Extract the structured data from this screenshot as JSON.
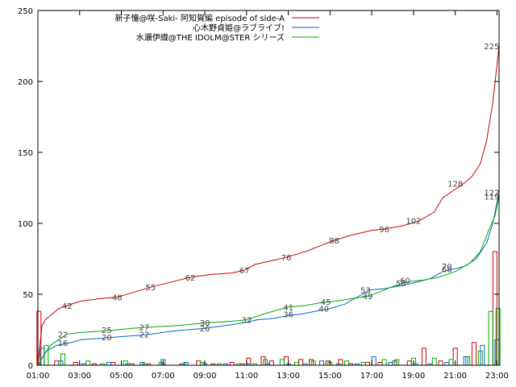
{
  "chart_data": {
    "type": "line",
    "title": "",
    "xlabel": "",
    "ylabel": "",
    "xlim": [
      1.0,
      23.1
    ],
    "ylim": [
      0,
      250
    ],
    "xticks": [
      "01:00",
      "03:00",
      "05:00",
      "07:00",
      "09:00",
      "11:00",
      "13:00",
      "15:00",
      "17:00",
      "19:00",
      "21:00",
      "23:00"
    ],
    "xtick_hours": [
      1,
      3,
      5,
      7,
      9,
      11,
      13,
      15,
      17,
      19,
      21,
      23
    ],
    "yticks": [
      0,
      50,
      100,
      150,
      200,
      250
    ],
    "grid": false,
    "legend_position": "top-right",
    "series": [
      {
        "name": "新子憧@咲-Saki- 阿知賀編 episode of side-A",
        "color": "#cc0000",
        "cumulative": [
          [
            1.0,
            0
          ],
          [
            1.1,
            15
          ],
          [
            1.2,
            28
          ],
          [
            1.35,
            32
          ],
          [
            1.6,
            35
          ],
          [
            2.0,
            40
          ],
          [
            2.4,
            42
          ],
          [
            3.0,
            45
          ],
          [
            4.0,
            47
          ],
          [
            4.8,
            48
          ],
          [
            5.5,
            51
          ],
          [
            6.4,
            55
          ],
          [
            7.5,
            59
          ],
          [
            8.3,
            62
          ],
          [
            9.3,
            64
          ],
          [
            10.3,
            65
          ],
          [
            10.9,
            67
          ],
          [
            11.4,
            71
          ],
          [
            12.3,
            74
          ],
          [
            12.9,
            76
          ],
          [
            13.8,
            80
          ],
          [
            14.5,
            84
          ],
          [
            15.2,
            88
          ],
          [
            16.1,
            92
          ],
          [
            17.0,
            95
          ],
          [
            17.6,
            96
          ],
          [
            18.4,
            98
          ],
          [
            18.9,
            100
          ],
          [
            19.3,
            102
          ],
          [
            20.0,
            108
          ],
          [
            20.4,
            118
          ],
          [
            20.9,
            123
          ],
          [
            21.4,
            128
          ],
          [
            21.8,
            133
          ],
          [
            22.2,
            142
          ],
          [
            22.5,
            158
          ],
          [
            22.8,
            185
          ],
          [
            23.1,
            225
          ]
        ],
        "labels": [
          [
            2.4,
            42,
            "42"
          ],
          [
            4.8,
            48,
            "48"
          ],
          [
            6.4,
            55,
            "55"
          ],
          [
            8.3,
            62,
            "62"
          ],
          [
            10.9,
            67,
            "67"
          ],
          [
            12.9,
            76,
            "76"
          ],
          [
            15.2,
            88,
            "88"
          ],
          [
            17.6,
            96,
            "96"
          ],
          [
            19.0,
            102,
            "102"
          ],
          [
            21.0,
            128,
            "128"
          ],
          [
            22.75,
            225,
            "225"
          ]
        ],
        "hourly": [
          [
            1.05,
            38
          ],
          [
            1.9,
            3
          ],
          [
            2.8,
            2
          ],
          [
            3.7,
            1
          ],
          [
            4.6,
            2
          ],
          [
            5.5,
            1
          ],
          [
            6.3,
            1
          ],
          [
            7.0,
            1
          ],
          [
            7.9,
            1
          ],
          [
            8.7,
            3
          ],
          [
            9.4,
            1
          ],
          [
            10.3,
            2
          ],
          [
            10.8,
            1
          ],
          [
            11.1,
            5
          ],
          [
            11.8,
            6
          ],
          [
            12.2,
            3
          ],
          [
            12.9,
            6
          ],
          [
            13.6,
            4
          ],
          [
            14.1,
            4
          ],
          [
            14.9,
            3
          ],
          [
            15.5,
            4
          ],
          [
            16.0,
            1
          ],
          [
            16.8,
            2
          ],
          [
            17.4,
            2
          ],
          [
            18.1,
            3
          ],
          [
            18.8,
            3
          ],
          [
            19.5,
            12
          ],
          [
            20.3,
            3
          ],
          [
            21.0,
            12
          ],
          [
            21.9,
            16
          ],
          [
            22.9,
            80
          ]
        ]
      },
      {
        "name": "心木野貞姫@ラブライブ!",
        "color": "#0066cc",
        "cumulative": [
          [
            1.0,
            0
          ],
          [
            1.4,
            10
          ],
          [
            1.9,
            14
          ],
          [
            2.6,
            16
          ],
          [
            3.1,
            18
          ],
          [
            4.0,
            19
          ],
          [
            4.9,
            20
          ],
          [
            5.8,
            21
          ],
          [
            6.5,
            22
          ],
          [
            7.4,
            24
          ],
          [
            8.2,
            25
          ],
          [
            9.0,
            26
          ],
          [
            10.0,
            28
          ],
          [
            10.9,
            30
          ],
          [
            11.5,
            32
          ],
          [
            12.3,
            33
          ],
          [
            13.0,
            35
          ],
          [
            13.6,
            36
          ],
          [
            14.3,
            38
          ],
          [
            15.0,
            40
          ],
          [
            15.7,
            43
          ],
          [
            16.3,
            48
          ],
          [
            16.9,
            53
          ],
          [
            17.6,
            54
          ],
          [
            18.4,
            56
          ],
          [
            19.0,
            58
          ],
          [
            19.8,
            61
          ],
          [
            20.4,
            66
          ],
          [
            21.0,
            68
          ],
          [
            21.5,
            70
          ],
          [
            22.0,
            75
          ],
          [
            22.5,
            86
          ],
          [
            22.8,
            100
          ],
          [
            23.1,
            122
          ]
        ],
        "labels": [
          [
            2.2,
            16,
            "16"
          ],
          [
            4.3,
            20,
            "20"
          ],
          [
            6.1,
            22,
            "22"
          ],
          [
            9.0,
            26,
            "26"
          ],
          [
            11.0,
            32,
            "32"
          ],
          [
            13.0,
            36,
            "36"
          ],
          [
            14.7,
            40,
            "40"
          ],
          [
            16.7,
            53,
            "53"
          ],
          [
            18.4,
            58,
            "58"
          ],
          [
            20.6,
            70,
            "70"
          ],
          [
            22.75,
            122,
            "122"
          ]
        ],
        "hourly": [
          [
            1.2,
            12
          ],
          [
            2.1,
            3
          ],
          [
            3.2,
            1
          ],
          [
            4.4,
            2
          ],
          [
            5.3,
            1
          ],
          [
            6.0,
            2
          ],
          [
            7.0,
            4
          ],
          [
            8.1,
            2
          ],
          [
            9.0,
            1
          ],
          [
            10.0,
            1
          ],
          [
            11.1,
            1
          ],
          [
            12.0,
            1
          ],
          [
            13.0,
            1
          ],
          [
            13.8,
            1
          ],
          [
            14.6,
            3
          ],
          [
            15.4,
            1
          ],
          [
            16.3,
            1
          ],
          [
            17.1,
            6
          ],
          [
            17.9,
            2
          ],
          [
            19.1,
            1
          ],
          [
            19.8,
            1
          ],
          [
            20.6,
            2
          ],
          [
            21.5,
            6
          ],
          [
            22.3,
            14
          ],
          [
            23.0,
            18
          ]
        ]
      },
      {
        "name": "水瀬伊織@THE IDOLM@STER シリーズ",
        "color": "#00aa00",
        "cumulative": [
          [
            1.0,
            0
          ],
          [
            1.2,
            5
          ],
          [
            1.6,
            14
          ],
          [
            2.0,
            18
          ],
          [
            2.4,
            22
          ],
          [
            3.0,
            23
          ],
          [
            4.0,
            24
          ],
          [
            4.8,
            25
          ],
          [
            5.5,
            26
          ],
          [
            6.5,
            27
          ],
          [
            7.7,
            28
          ],
          [
            8.4,
            29
          ],
          [
            9.2,
            30
          ],
          [
            10.3,
            31
          ],
          [
            11.0,
            32
          ],
          [
            11.8,
            36
          ],
          [
            12.5,
            39
          ],
          [
            13.0,
            41
          ],
          [
            13.8,
            42
          ],
          [
            14.5,
            44
          ],
          [
            15.2,
            45
          ],
          [
            16.1,
            47
          ],
          [
            16.9,
            49
          ],
          [
            17.6,
            53
          ],
          [
            18.1,
            56
          ],
          [
            18.8,
            59
          ],
          [
            19.5,
            60
          ],
          [
            20.2,
            62
          ],
          [
            21.0,
            66
          ],
          [
            21.7,
            72
          ],
          [
            22.2,
            80
          ],
          [
            22.6,
            95
          ],
          [
            22.9,
            105
          ],
          [
            23.1,
            119
          ]
        ],
        "labels": [
          [
            2.2,
            22,
            "22"
          ],
          [
            4.3,
            25,
            "25"
          ],
          [
            6.1,
            27,
            "27"
          ],
          [
            9.0,
            30,
            "30"
          ],
          [
            13.0,
            41,
            "41"
          ],
          [
            14.8,
            45,
            "45"
          ],
          [
            16.8,
            49,
            "49"
          ],
          [
            18.6,
            60,
            "60"
          ],
          [
            20.6,
            68,
            "68"
          ],
          [
            22.75,
            119,
            "119"
          ]
        ],
        "hourly": [
          [
            1.4,
            14
          ],
          [
            2.2,
            8
          ],
          [
            3.4,
            3
          ],
          [
            4.1,
            1
          ],
          [
            5.2,
            3
          ],
          [
            6.1,
            1
          ],
          [
            6.9,
            2
          ],
          [
            8.0,
            1
          ],
          [
            8.9,
            2
          ],
          [
            9.7,
            1
          ],
          [
            10.6,
            1
          ],
          [
            11.4,
            1
          ],
          [
            11.9,
            4
          ],
          [
            12.7,
            4
          ],
          [
            13.4,
            2
          ],
          [
            14.2,
            3
          ],
          [
            15.0,
            2
          ],
          [
            15.8,
            3
          ],
          [
            16.6,
            2
          ],
          [
            17.6,
            4
          ],
          [
            18.2,
            4
          ],
          [
            19.0,
            5
          ],
          [
            20.0,
            5
          ],
          [
            20.8,
            4
          ],
          [
            21.6,
            6
          ],
          [
            22.2,
            10
          ],
          [
            22.7,
            38
          ],
          [
            23.05,
            40
          ]
        ]
      }
    ]
  }
}
